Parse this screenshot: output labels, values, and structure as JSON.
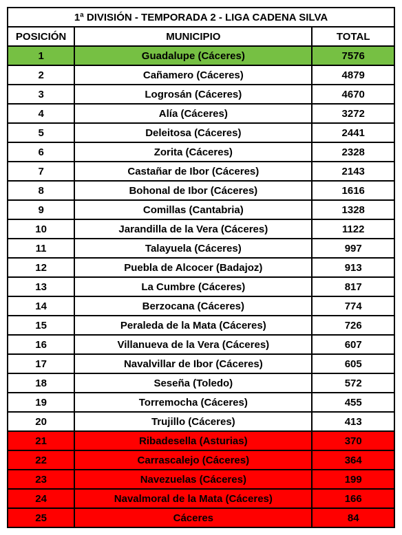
{
  "title": "1ª DIVISIÓN - TEMPORADA 2 - LIGA CADENA SILVA",
  "headers": {
    "posicion": "POSICIÓN",
    "municipio": "MUNICIPIO",
    "total": "TOTAL"
  },
  "colors": {
    "default_bg": "#ffffff",
    "green_bg": "#76c043",
    "red_bg": "#ff0000",
    "border": "#000000",
    "text": "#000000"
  },
  "rows": [
    {
      "pos": "1",
      "municipio": "Guadalupe (Cáceres)",
      "total": "7576",
      "bg": "#76c043"
    },
    {
      "pos": "2",
      "municipio": "Cañamero (Cáceres)",
      "total": "4879",
      "bg": "#ffffff"
    },
    {
      "pos": "3",
      "municipio": "Logrosán (Cáceres)",
      "total": "4670",
      "bg": "#ffffff"
    },
    {
      "pos": "4",
      "municipio": "Alía (Cáceres)",
      "total": "3272",
      "bg": "#ffffff"
    },
    {
      "pos": "5",
      "municipio": "Deleitosa (Cáceres)",
      "total": "2441",
      "bg": "#ffffff"
    },
    {
      "pos": "6",
      "municipio": "Zorita (Cáceres)",
      "total": "2328",
      "bg": "#ffffff"
    },
    {
      "pos": "7",
      "municipio": "Castañar de Ibor (Cáceres)",
      "total": "2143",
      "bg": "#ffffff"
    },
    {
      "pos": "8",
      "municipio": "Bohonal de Ibor (Cáceres)",
      "total": "1616",
      "bg": "#ffffff"
    },
    {
      "pos": "9",
      "municipio": "Comillas (Cantabria)",
      "total": "1328",
      "bg": "#ffffff"
    },
    {
      "pos": "10",
      "municipio": "Jarandilla de la Vera (Cáceres)",
      "total": "1122",
      "bg": "#ffffff"
    },
    {
      "pos": "11",
      "municipio": "Talayuela (Cáceres)",
      "total": "997",
      "bg": "#ffffff"
    },
    {
      "pos": "12",
      "municipio": "Puebla de Alcocer (Badajoz)",
      "total": "913",
      "bg": "#ffffff"
    },
    {
      "pos": "13",
      "municipio": "La Cumbre (Cáceres)",
      "total": "817",
      "bg": "#ffffff"
    },
    {
      "pos": "14",
      "municipio": "Berzocana (Cáceres)",
      "total": "774",
      "bg": "#ffffff"
    },
    {
      "pos": "15",
      "municipio": "Peraleda de la Mata (Cáceres)",
      "total": "726",
      "bg": "#ffffff"
    },
    {
      "pos": "16",
      "municipio": "Villanueva de la Vera (Cáceres)",
      "total": "607",
      "bg": "#ffffff"
    },
    {
      "pos": "17",
      "municipio": "Navalvillar de Ibor (Cáceres)",
      "total": "605",
      "bg": "#ffffff"
    },
    {
      "pos": "18",
      "municipio": "Seseña (Toledo)",
      "total": "572",
      "bg": "#ffffff"
    },
    {
      "pos": "19",
      "municipio": "Torremocha (Cáceres)",
      "total": "455",
      "bg": "#ffffff"
    },
    {
      "pos": "20",
      "municipio": "Trujillo (Cáceres)",
      "total": "413",
      "bg": "#ffffff"
    },
    {
      "pos": "21",
      "municipio": "Ribadesella (Asturias)",
      "total": "370",
      "bg": "#ff0000"
    },
    {
      "pos": "22",
      "municipio": "Carrascalejo (Cáceres)",
      "total": "364",
      "bg": "#ff0000"
    },
    {
      "pos": "23",
      "municipio": "Navezuelas (Cáceres)",
      "total": "199",
      "bg": "#ff0000"
    },
    {
      "pos": "24",
      "municipio": "Navalmoral de la Mata (Cáceres)",
      "total": "166",
      "bg": "#ff0000"
    },
    {
      "pos": "25",
      "municipio": "Cáceres",
      "total": "84",
      "bg": "#ff0000"
    }
  ]
}
